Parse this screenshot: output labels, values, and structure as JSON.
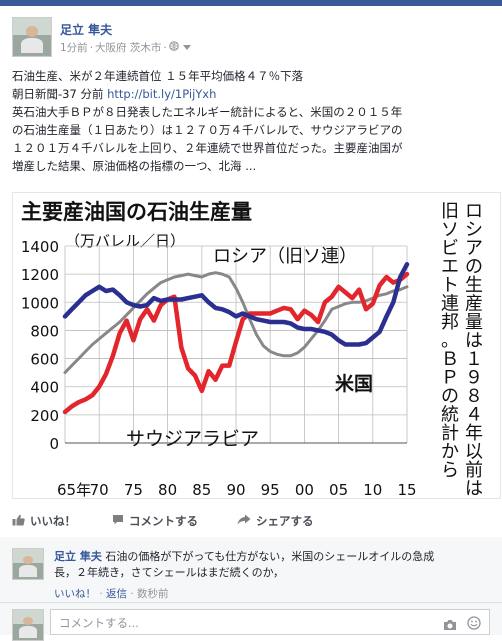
{
  "post": {
    "author": "足立 隼夫",
    "time": "1分前",
    "location": "大阪府 茨木市",
    "headline": "石油生産、米が２年連続首位 １５年平均価格４７％下落",
    "source": "朝日新聞-37 分前",
    "link": "http://bit.ly/1PijYxh",
    "body_lines": [
      "英石油大手ＢＰが８日発表したエネルギー統計によると、米国の２０１５年",
      "の石油生産量（１日あたり）は１２７０万４千バレルで、サウジアラビアの",
      "１２０１万４千バレルを上回り、２年連続で世界首位だった。主要産油国が",
      "増産した結果、原油価格の指標の一つ、北海 ..."
    ]
  },
  "actions": {
    "like": "いいね！",
    "comment": "コメントする",
    "share": "シェアする"
  },
  "comment": {
    "author": "足立 隼夫",
    "text_line1": "石油の価格が下がっても仕方がない，米国のシェールオイルの急成",
    "text_line2": "長，２年続き，さてシェールはまだ続くのか，",
    "like": "いいね！",
    "reply": "返信",
    "time": "数秒前"
  },
  "comment_box": {
    "placeholder": "コメントする..."
  },
  "icons": [
    "globe-icon",
    "chevron-down-icon",
    "thumbs-up-icon",
    "comment-icon",
    "share-icon",
    "camera-icon",
    "emoji-icon"
  ],
  "chart_data": {
    "type": "line",
    "title": "主要産油国の石油生産量",
    "unit": "（万バレル／日）",
    "xlabel": "",
    "ylabel": "",
    "ylim": [
      0,
      1450
    ],
    "yticks": [
      0,
      200,
      400,
      600,
      800,
      1000,
      1200,
      1400
    ],
    "xticks": [
      65,
      70,
      75,
      80,
      85,
      90,
      95,
      2000,
      5,
      10,
      15
    ],
    "xtick_labels": [
      "65年",
      "70",
      "75",
      "80",
      "85",
      "90",
      "95",
      "00",
      "05",
      "10",
      "15"
    ],
    "note": "ロシアの生産量は１９８４年以前は旧ソビエト連邦。ＢＰの統計から",
    "series": [
      {
        "name": "米国",
        "color": "#2b2f8f",
        "x": [
          65,
          66,
          67,
          68,
          69,
          70,
          71,
          72,
          73,
          74,
          75,
          76,
          77,
          78,
          79,
          80,
          81,
          82,
          83,
          84,
          85,
          86,
          87,
          88,
          89,
          90,
          91,
          92,
          93,
          94,
          95,
          96,
          97,
          98,
          99,
          100,
          101,
          102,
          103,
          104,
          105,
          106,
          107,
          108,
          109,
          110,
          111,
          112,
          113,
          114,
          115
        ],
        "y": [
          900,
          950,
          1000,
          1050,
          1080,
          1110,
          1080,
          1090,
          1050,
          1000,
          980,
          970,
          980,
          1030,
          1010,
          1020,
          1020,
          1020,
          1030,
          1040,
          1050,
          1000,
          960,
          950,
          930,
          900,
          920,
          900,
          880,
          870,
          860,
          860,
          860,
          850,
          820,
          810,
          810,
          800,
          790,
          770,
          730,
          700,
          700,
          700,
          710,
          750,
          790,
          900,
          1000,
          1180,
          1270
        ]
      },
      {
        "name": "サウジアラビア",
        "color": "#e2262c",
        "x": [
          65,
          66,
          67,
          68,
          69,
          70,
          71,
          72,
          73,
          74,
          75,
          76,
          77,
          78,
          79,
          80,
          81,
          82,
          83,
          84,
          85,
          86,
          87,
          88,
          89,
          90,
          91,
          92,
          93,
          94,
          95,
          96,
          97,
          98,
          99,
          100,
          101,
          102,
          103,
          104,
          105,
          106,
          107,
          108,
          109,
          110,
          111,
          112,
          113,
          114,
          115
        ],
        "y": [
          220,
          260,
          290,
          310,
          340,
          400,
          490,
          620,
          780,
          870,
          730,
          880,
          950,
          870,
          980,
          1020,
          1040,
          680,
          530,
          480,
          370,
          510,
          450,
          550,
          550,
          720,
          880,
          920,
          920,
          920,
          920,
          940,
          960,
          950,
          880,
          940,
          910,
          860,
          1000,
          1040,
          1110,
          1070,
          1030,
          1090,
          950,
          990,
          1120,
          1180,
          1140,
          1160,
          1200
        ]
      },
      {
        "name": "ロシア（旧ソ連）",
        "color": "#888888",
        "x": [
          65,
          66,
          67,
          68,
          69,
          70,
          71,
          72,
          73,
          74,
          75,
          76,
          77,
          78,
          79,
          80,
          81,
          82,
          83,
          84,
          85,
          86,
          87,
          88,
          89,
          90,
          91,
          92,
          93,
          94,
          95,
          96,
          97,
          98,
          99,
          100,
          101,
          102,
          103,
          104,
          105,
          106,
          107,
          108,
          109,
          110,
          111,
          112,
          113,
          114,
          115
        ],
        "y": [
          500,
          550,
          600,
          650,
          700,
          740,
          780,
          820,
          860,
          910,
          960,
          1010,
          1060,
          1100,
          1140,
          1160,
          1180,
          1190,
          1200,
          1190,
          1180,
          1200,
          1210,
          1200,
          1180,
          1100,
          1000,
          880,
          770,
          690,
          650,
          630,
          620,
          620,
          640,
          680,
          740,
          800,
          870,
          950,
          970,
          990,
          1000,
          1000,
          1010,
          1030,
          1050,
          1060,
          1080,
          1090,
          1110
        ]
      }
    ]
  }
}
